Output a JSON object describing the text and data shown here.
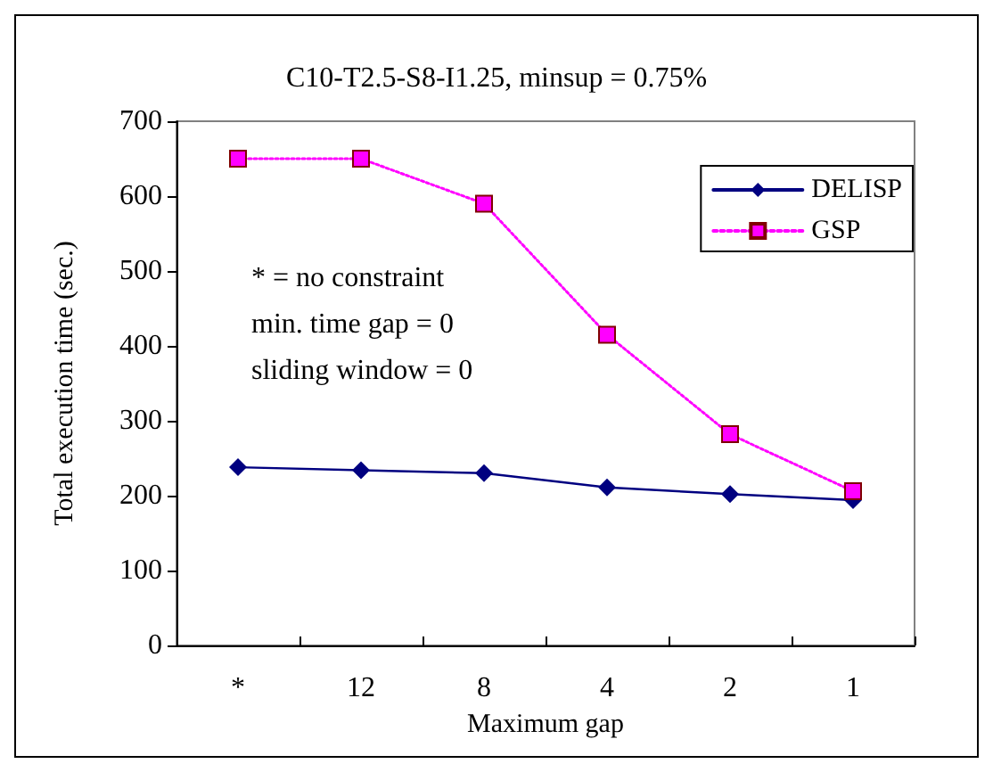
{
  "chart_data": {
    "type": "line",
    "title": "C10-T2.5-S8-I1.25, minsup = 0.75%",
    "xlabel": "Maximum gap",
    "ylabel": "Total execution time (sec.)",
    "categories": [
      "*",
      "12",
      "8",
      "4",
      "2",
      "1"
    ],
    "series": [
      {
        "name": "DELISP",
        "color": "#000080",
        "marker": "diamond",
        "line_style": "solid",
        "values": [
          238,
          234,
          230,
          211,
          202,
          194
        ]
      },
      {
        "name": "GSP",
        "color": "#ff00ff",
        "marker": "square",
        "line_style": "dotted",
        "values": [
          650,
          650,
          590,
          415,
          282,
          206
        ]
      }
    ],
    "ylim": [
      0,
      700
    ],
    "yticks": [
      0,
      100,
      200,
      300,
      400,
      500,
      600,
      700
    ],
    "grid": false,
    "legend": "top right",
    "annotations": [
      "* = no constraint",
      "min. time gap = 0",
      "sliding window = 0"
    ]
  }
}
